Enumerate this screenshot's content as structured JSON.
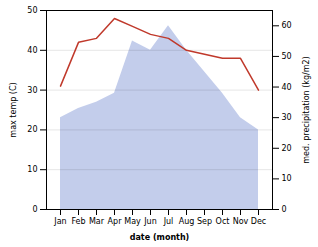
{
  "chart_data": {
    "type": "line",
    "categories": [
      "Jan",
      "Feb",
      "Mar",
      "Apr",
      "May",
      "Jun",
      "Jul",
      "Aug",
      "Sep",
      "Oct",
      "Nov",
      "Dec"
    ],
    "series": [
      {
        "type": "area",
        "axis": "y2",
        "color": "#b8c4e8",
        "values": [
          30,
          33,
          35,
          38,
          55,
          52,
          60,
          52,
          45,
          38,
          30,
          26
        ]
      },
      {
        "type": "line",
        "color": "#c0392b",
        "values": [
          31,
          42,
          43,
          48,
          46,
          44,
          43,
          40,
          39,
          38,
          38,
          30
        ]
      }
    ],
    "xlabel": "date (month)",
    "ylabel": "max temp (C)",
    "y2label": "med. precipitation (kg/m2)",
    "ylim": [
      0,
      50
    ],
    "yticks": [
      0,
      10,
      20,
      30,
      40,
      50
    ],
    "y2lim": [
      0,
      65
    ],
    "y2ticks": [
      0,
      10,
      20,
      30,
      40,
      50,
      60
    ],
    "grid": true
  }
}
